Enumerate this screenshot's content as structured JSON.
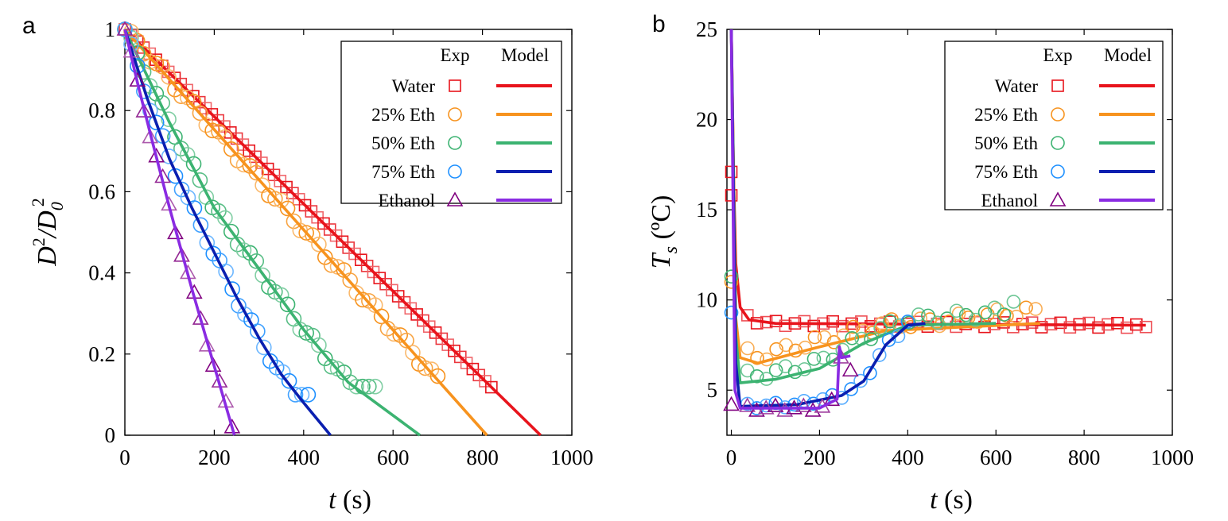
{
  "panels": {
    "a": {
      "letter": "a"
    },
    "b": {
      "letter": "b"
    }
  },
  "legend": {
    "exp_header": "Exp",
    "model_header": "Model",
    "labels": [
      "Water",
      "25% Eth",
      "50% Eth",
      "75% Eth",
      "Ethanol"
    ]
  },
  "axis_labels": {
    "t_var": "t",
    "t_unit": "(s)",
    "a_y_d": "D",
    "a_y_exp": "2",
    "a_y_slash": "/D",
    "a_y_sub": "0",
    "a_y_exp2": "2",
    "b_y_t": "T",
    "b_y_sub": "s",
    "b_y_unit": "(ºC)"
  },
  "colors": {
    "water_model": "#e8141c",
    "water_exp": "#e8141c",
    "eth25_model": "#f7931e",
    "eth25_exp": "#f7931e",
    "eth50_model": "#3cb371",
    "eth50_exp": "#3cb371",
    "eth75_model": "#0a1fb0",
    "eth75_exp": "#1e90ff",
    "ethanol_model": "#8a2be2",
    "ethanol_exp": "#800080"
  },
  "chart_data": [
    {
      "id": "a",
      "type": "scatter",
      "title": "",
      "xlabel": "t (s)",
      "ylabel": "D^2/D_0^2",
      "xlim": [
        0,
        1000
      ],
      "ylim": [
        0,
        1
      ],
      "xticks": [
        "0",
        "200",
        "400",
        "600",
        "800",
        "1000"
      ],
      "yticks": [
        "0",
        "0.2",
        "0.4",
        "0.6",
        "0.8",
        "1"
      ],
      "legend_placement": "top-right",
      "series": [
        {
          "name": "Water",
          "marker": "square",
          "exp_end": [
            820,
            0.1
          ],
          "model": [
            [
              0,
              1
            ],
            [
              930,
              0
            ]
          ]
        },
        {
          "name": "25% Eth",
          "marker": "circle",
          "exp_end": [
            700,
            0.13
          ],
          "model": [
            [
              0,
              1
            ],
            [
              810,
              0
            ]
          ]
        },
        {
          "name": "50% Eth",
          "marker": "circle",
          "exp_end": [
            560,
            0.12
          ],
          "model": [
            [
              0,
              1
            ],
            [
              100,
              0.77
            ],
            [
              200,
              0.56
            ],
            [
              300,
              0.41
            ],
            [
              400,
              0.26
            ],
            [
              500,
              0.13
            ],
            [
              660,
              0
            ]
          ]
        },
        {
          "name": "75% Eth",
          "marker": "circle",
          "exp_end": [
            410,
            0.1
          ],
          "model": [
            [
              0,
              1
            ],
            [
              50,
              0.83
            ],
            [
              100,
              0.68
            ],
            [
              150,
              0.56
            ],
            [
              200,
              0.45
            ],
            [
              250,
              0.34
            ],
            [
              300,
              0.24
            ],
            [
              350,
              0.15
            ],
            [
              400,
              0.08
            ],
            [
              460,
              0
            ]
          ]
        },
        {
          "name": "Ethanol",
          "marker": "triangle",
          "exp_end": [
            240,
            0.02
          ],
          "model": [
            [
              0,
              1
            ],
            [
              30,
              0.86
            ],
            [
              60,
              0.73
            ],
            [
              100,
              0.56
            ],
            [
              150,
              0.36
            ],
            [
              200,
              0.17
            ],
            [
              245,
              0
            ]
          ]
        }
      ]
    },
    {
      "id": "b",
      "type": "scatter",
      "title": "",
      "xlabel": "t (s)",
      "ylabel": "T_s (ºC)",
      "xlim": [
        -10,
        1000
      ],
      "ylim": [
        2.5,
        25
      ],
      "xticks": [
        "0",
        "200",
        "400",
        "600",
        "800",
        "1000"
      ],
      "yticks": [
        "5",
        "10",
        "15",
        "20",
        "25"
      ],
      "legend_placement": "top-right",
      "series": [
        {
          "name": "Water",
          "marker": "square",
          "exp_points": [
            [
              0,
              17.1
            ],
            [
              0,
              15.8
            ],
            [
              940,
              8.5
            ]
          ],
          "model": [
            [
              0,
              25
            ],
            [
              5,
              17
            ],
            [
              10,
              12
            ],
            [
              20,
              9.6
            ],
            [
              40,
              8.9
            ],
            [
              100,
              8.7
            ],
            [
              940,
              8.6
            ]
          ]
        },
        {
          "name": "25% Eth",
          "marker": "circle",
          "exp_points": [
            [
              0,
              11
            ],
            [
              690,
              9.5
            ]
          ],
          "model": [
            [
              0,
              25
            ],
            [
              10,
              9
            ],
            [
              20,
              6.8
            ],
            [
              60,
              6.5
            ],
            [
              200,
              7.4
            ],
            [
              350,
              8.3
            ],
            [
              700,
              8.7
            ]
          ]
        },
        {
          "name": "50% Eth",
          "marker": "circle",
          "exp_points": [
            [
              0,
              11.3
            ],
            [
              640,
              9.9
            ]
          ],
          "model": [
            [
              0,
              25
            ],
            [
              10,
              8
            ],
            [
              20,
              5.4
            ],
            [
              100,
              5.6
            ],
            [
              200,
              6.2
            ],
            [
              300,
              7.6
            ],
            [
              400,
              8.6
            ],
            [
              600,
              8.7
            ]
          ]
        },
        {
          "name": "75% Eth",
          "marker": "circle",
          "exp_points": [
            [
              0,
              9.3
            ],
            [
              400,
              8.8
            ]
          ],
          "model": [
            [
              0,
              25
            ],
            [
              10,
              6.5
            ],
            [
              20,
              4.1
            ],
            [
              150,
              4.2
            ],
            [
              250,
              4.7
            ],
            [
              300,
              5.5
            ],
            [
              350,
              7.5
            ],
            [
              400,
              8.6
            ],
            [
              440,
              8.7
            ]
          ]
        },
        {
          "name": "Ethanol",
          "marker": "triangle",
          "exp_points": [
            [
              0,
              4.2
            ],
            [
              270,
              6.1
            ]
          ],
          "model": [
            [
              0,
              25
            ],
            [
              8,
              5
            ],
            [
              20,
              4
            ],
            [
              200,
              4
            ],
            [
              240,
              4.5
            ],
            [
              245,
              7.4
            ],
            [
              250,
              6.8
            ],
            [
              270,
              6.9
            ]
          ]
        }
      ]
    }
  ]
}
